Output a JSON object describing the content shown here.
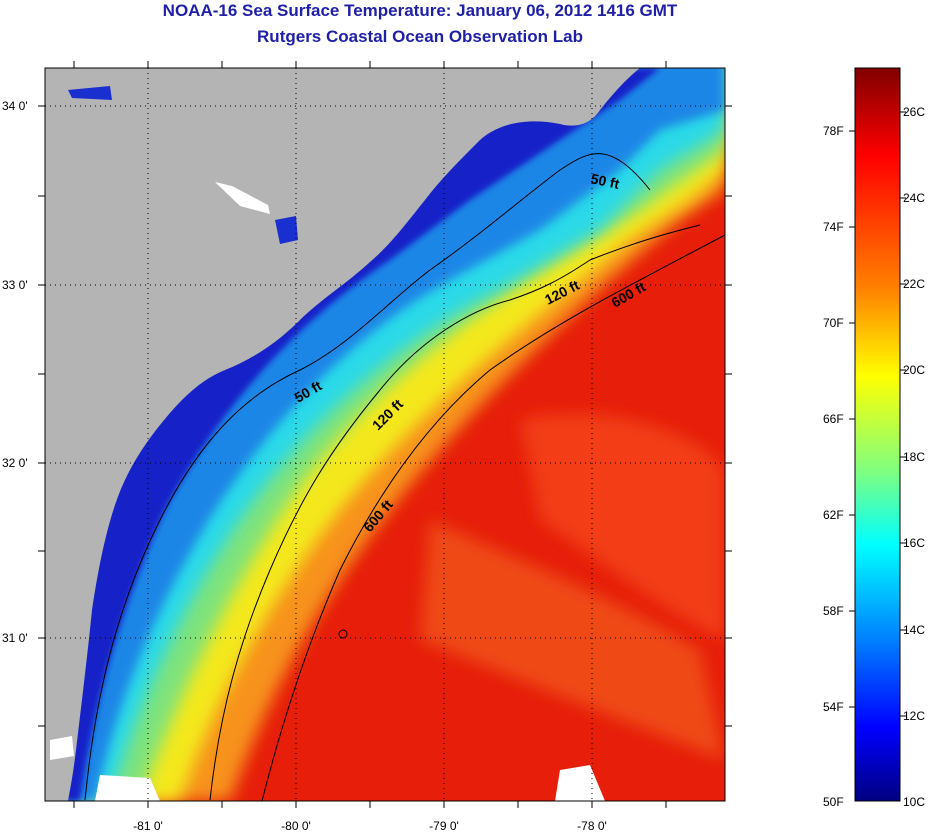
{
  "title": {
    "line1": "NOAA-16 Sea Surface Temperature:  January 06, 2012 1416 GMT",
    "line2": "Rutgers Coastal Ocean Observation Lab"
  },
  "map": {
    "lat_ticks": [
      "34 0'",
      "33 0'",
      "32 0'",
      "31 0'"
    ],
    "lon_ticks": [
      "-81 0'",
      "-80 0'",
      "-79 0'",
      "-78 0'"
    ],
    "contours": [
      "50 ft",
      "120 ft",
      "600 ft",
      "50 ft",
      "120 ft",
      "600 ft"
    ]
  },
  "colorbar": {
    "fahrenheit": [
      "78F",
      "74F",
      "70F",
      "66F",
      "62F",
      "58F",
      "54F",
      "50F"
    ],
    "celsius": [
      "26C",
      "24C",
      "22C",
      "20C",
      "18C",
      "16C",
      "14C",
      "12C",
      "10C"
    ],
    "colors": [
      "#800000",
      "#ff0000",
      "#ff8000",
      "#ffff00",
      "#80ff80",
      "#00ffff",
      "#0080ff",
      "#0000ff",
      "#000080"
    ]
  }
}
